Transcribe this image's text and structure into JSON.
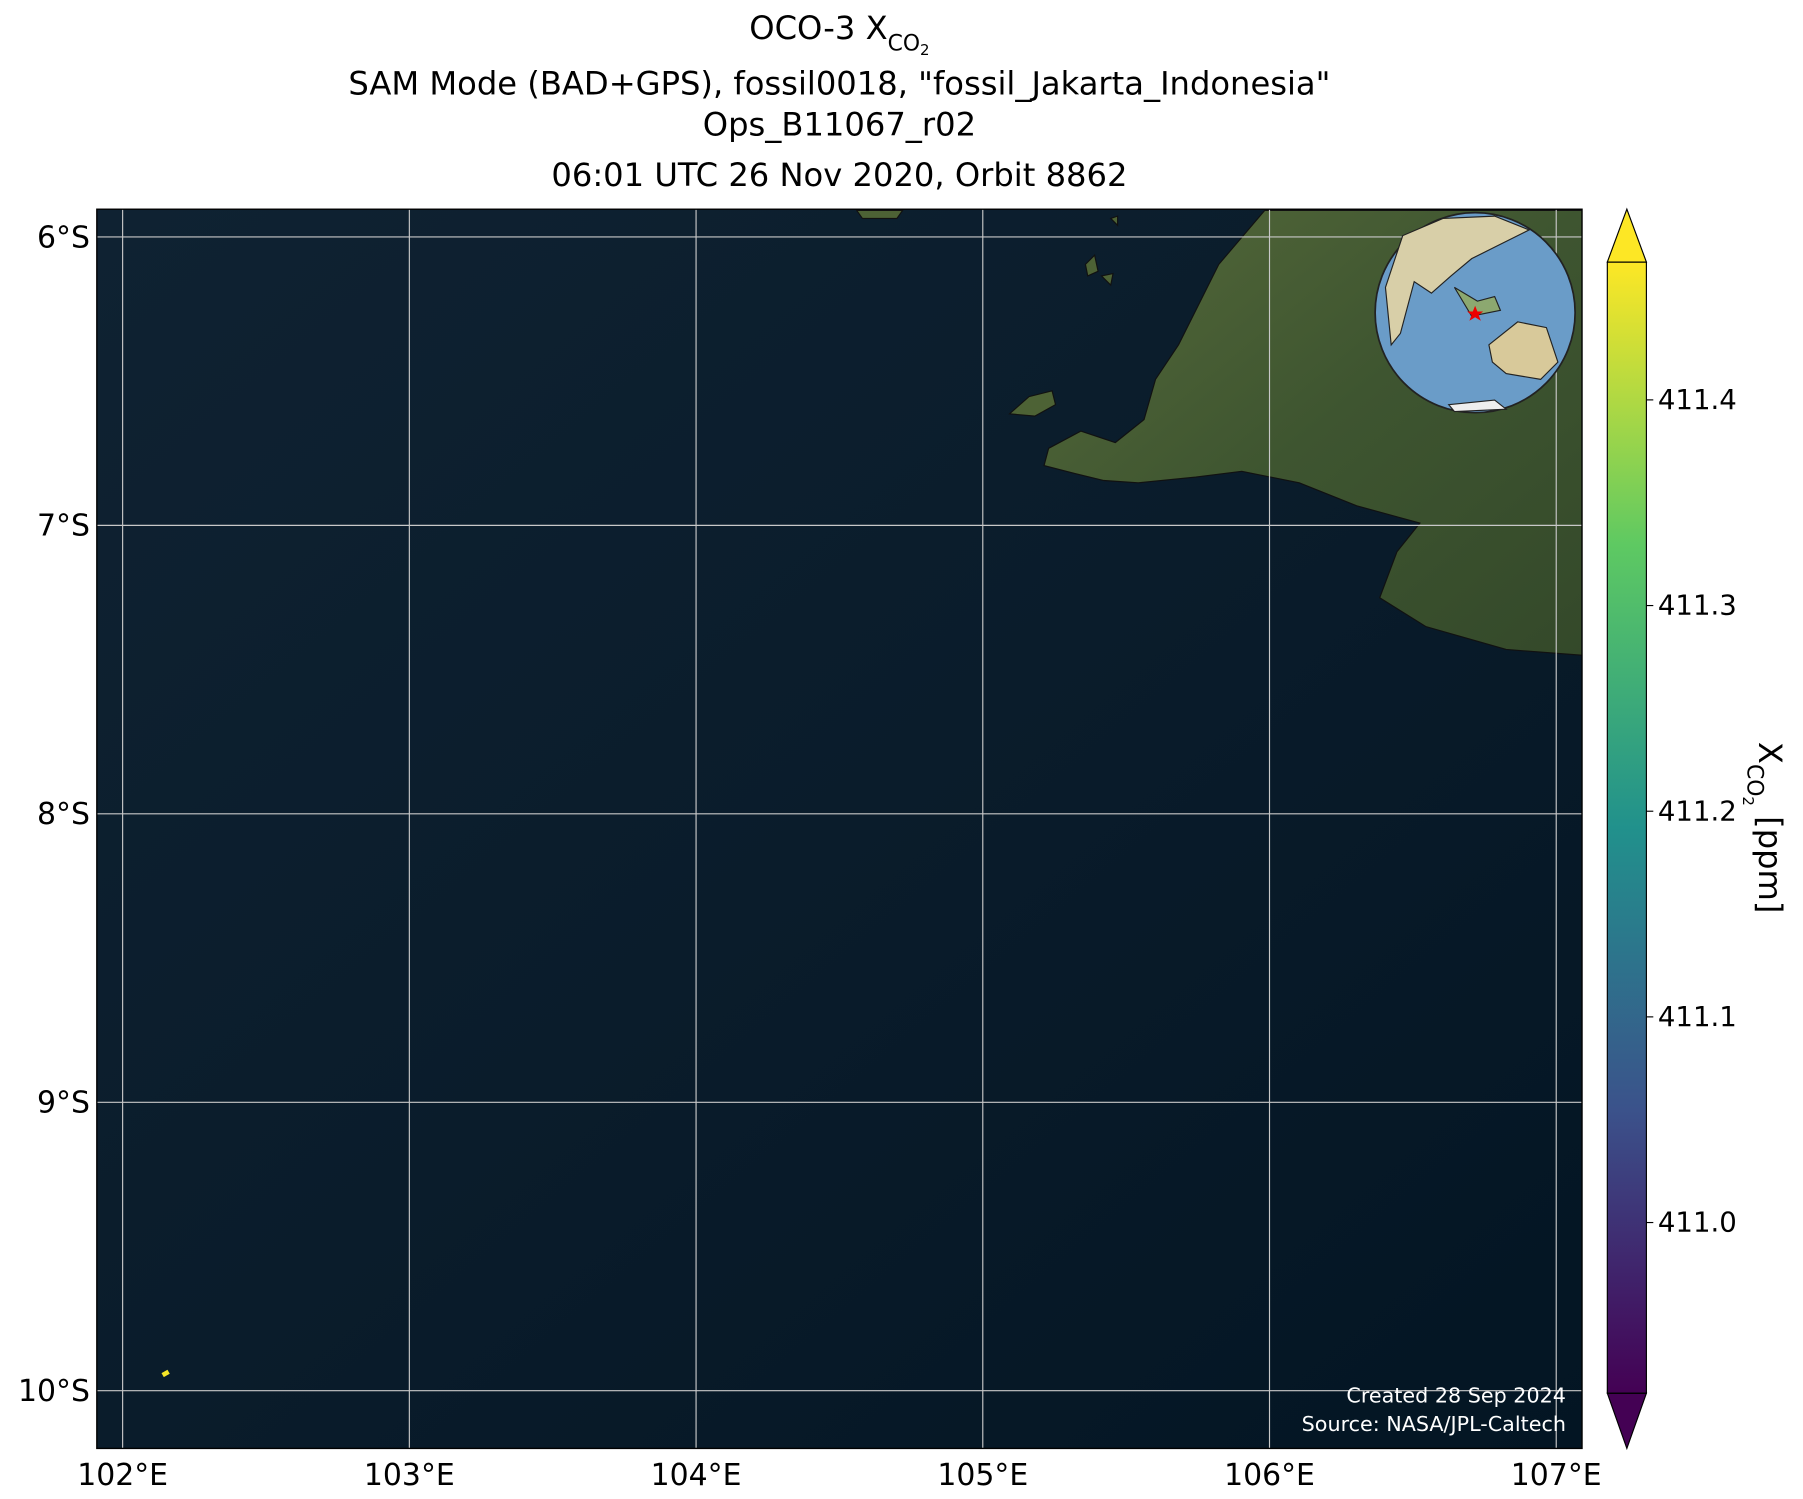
{
  "chart_data": {
    "type": "map",
    "title": "OCO-3 X",
    "title_subscript": "CO",
    "title_subscript2": "2",
    "subtitle_lines": [
      "SAM Mode (BAD+GPS), fossil0018, \"fossil_Jakarta_Indonesia\"",
      "Ops_B11067_r02",
      "06:01 UTC 26 Nov 2020, Orbit 8862"
    ],
    "xlim": [
      101.91,
      107.09
    ],
    "ylim": [
      -10.2,
      -5.904
    ],
    "xticks": [
      {
        "value": 102,
        "label": "102°E"
      },
      {
        "value": 103,
        "label": "103°E"
      },
      {
        "value": 104,
        "label": "104°E"
      },
      {
        "value": 105,
        "label": "105°E"
      },
      {
        "value": 106,
        "label": "106°E"
      },
      {
        "value": 107,
        "label": "107°E"
      }
    ],
    "yticks": [
      {
        "value": -6,
        "label": "6°S"
      },
      {
        "value": -7,
        "label": "7°S"
      },
      {
        "value": -8,
        "label": "8°S"
      },
      {
        "value": -9,
        "label": "9°S"
      },
      {
        "value": -10,
        "label": "10°S"
      }
    ],
    "grid": true,
    "lon": [
      102.15
    ],
    "lat": [
      -9.94
    ],
    "values": [
      411.46
    ],
    "colormap": "viridis",
    "clim": [
      410.917,
      411.467
    ],
    "cticks": [
      {
        "value": 411.0,
        "label": "411.0"
      },
      411.1,
      411.2,
      411.3,
      411.4
    ],
    "colorbar_label": "X",
    "colorbar_label_sub": "CO",
    "colorbar_label_sub2": "2",
    "colorbar_label_unit": " [ppm]",
    "annotations": [
      "Created 28 Sep 2024",
      "Source: NASA/JPL-Caltech"
    ]
  }
}
